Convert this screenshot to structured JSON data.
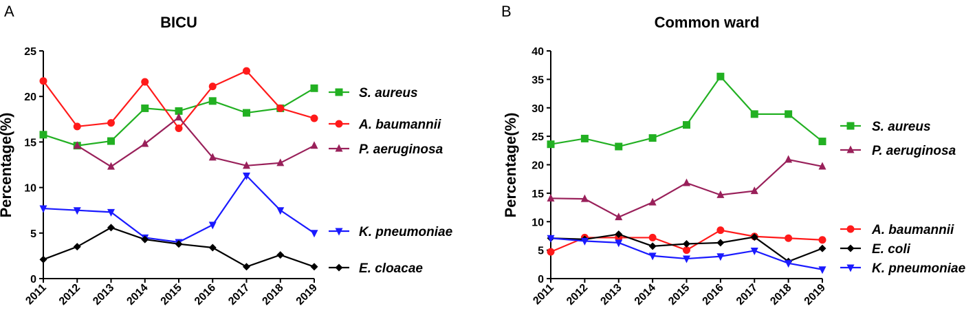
{
  "chart_data": [
    {
      "panel": "A",
      "type": "line",
      "title": "BICU",
      "xlabel": "",
      "ylabel": "Percentage(%)",
      "x": [
        "2011",
        "2012",
        "2013",
        "2014",
        "2015",
        "2016",
        "2017",
        "2018",
        "2019"
      ],
      "ylim": [
        0,
        25
      ],
      "yticks": [
        0,
        5,
        10,
        15,
        20,
        25
      ],
      "grid": false,
      "legend": "right",
      "series": [
        {
          "name": "S. aureus",
          "color": "#22b022",
          "marker": "square",
          "values": [
            15.8,
            14.6,
            15.1,
            18.7,
            18.4,
            19.5,
            18.2,
            18.7,
            20.9
          ]
        },
        {
          "name": "A. baumannii",
          "color": "#ff1a1a",
          "marker": "circle",
          "values": [
            21.7,
            16.7,
            17.1,
            21.6,
            16.5,
            21.1,
            22.8,
            18.7,
            17.6
          ]
        },
        {
          "name": "P. aeruginosa",
          "color": "#99205a",
          "marker": "triangle-up",
          "values": [
            null,
            14.6,
            12.3,
            14.8,
            17.7,
            13.3,
            12.4,
            12.7,
            14.6
          ]
        },
        {
          "name": "K. pneumoniae",
          "color": "#1a1aff",
          "marker": "triangle-down",
          "values": [
            7.7,
            7.5,
            7.3,
            4.5,
            4.0,
            5.9,
            11.3,
            7.5,
            5.0
          ]
        },
        {
          "name": "E. cloacae",
          "color": "#000000",
          "marker": "diamond",
          "values": [
            2.1,
            3.5,
            5.6,
            4.3,
            3.8,
            3.4,
            1.3,
            2.6,
            1.3
          ]
        }
      ]
    },
    {
      "panel": "B",
      "type": "line",
      "title": "Common ward",
      "xlabel": "",
      "ylabel": "Percentage(%)",
      "x": [
        "2011",
        "2012",
        "2013",
        "2014",
        "2015",
        "2016",
        "2017",
        "2018",
        "2019"
      ],
      "ylim": [
        0,
        40
      ],
      "yticks": [
        0,
        5,
        10,
        15,
        20,
        25,
        30,
        35,
        40
      ],
      "grid": false,
      "legend": "right",
      "series": [
        {
          "name": "S. aureus",
          "color": "#22b022",
          "marker": "square",
          "values": [
            23.6,
            24.6,
            23.2,
            24.7,
            27.0,
            35.5,
            28.9,
            28.9,
            24.1
          ]
        },
        {
          "name": "P. aeruginosa",
          "color": "#99205a",
          "marker": "triangle-up",
          "values": [
            14.1,
            14.0,
            10.8,
            13.4,
            16.8,
            14.7,
            15.4,
            20.9,
            19.7
          ]
        },
        {
          "name": "A. baumannii",
          "color": "#ff1a1a",
          "marker": "circle",
          "values": [
            4.7,
            7.2,
            7.2,
            7.2,
            5.0,
            8.5,
            7.4,
            7.1,
            6.8
          ]
        },
        {
          "name": "E. coli",
          "color": "#000000",
          "marker": "diamond",
          "values": [
            7.1,
            6.9,
            7.8,
            5.7,
            6.1,
            6.3,
            7.3,
            3.0,
            5.3
          ]
        },
        {
          "name": "K. pneumoniae",
          "color": "#1a1aff",
          "marker": "triangle-down",
          "values": [
            7.1,
            6.6,
            6.3,
            4.0,
            3.5,
            3.9,
            4.9,
            2.7,
            1.6
          ]
        }
      ]
    }
  ]
}
